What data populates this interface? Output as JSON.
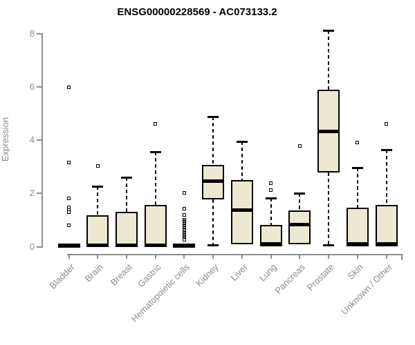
{
  "chart_data": {
    "type": "box",
    "title": "ENSG00000228569 - AC073133.2",
    "ylabel": "Expression",
    "xlabel": "",
    "ylim": [
      0,
      8
    ],
    "yticks": [
      0,
      2,
      4,
      6,
      8
    ],
    "grid": false,
    "legend": false,
    "categories": [
      "Bladder",
      "Brain",
      "Breast",
      "Gastric",
      "Hematopoietic cells",
      "Kidney",
      "Liver",
      "Lung",
      "Pancreas",
      "Prostate",
      "Skin",
      "Unknown / Other"
    ],
    "series": [
      {
        "name": "Bladder",
        "low": 0,
        "q1": 0,
        "median": 0.03,
        "q3": 0.06,
        "high": 0.06,
        "outliers": [
          5.95,
          3.15,
          1.78,
          1.45,
          1.36,
          1.27,
          0.78
        ]
      },
      {
        "name": "Brain",
        "low": 0,
        "q1": 0,
        "median": 0.03,
        "q3": 1.15,
        "high": 2.25,
        "outliers": [
          3.0
        ]
      },
      {
        "name": "Breast",
        "low": 0,
        "q1": 0,
        "median": 0.03,
        "q3": 1.28,
        "high": 2.57,
        "outliers": []
      },
      {
        "name": "Gastric",
        "low": 0,
        "q1": 0,
        "median": 0.03,
        "q3": 1.55,
        "high": 3.55,
        "outliers": [
          4.6
        ]
      },
      {
        "name": "Hematopoietic cells",
        "low": 0,
        "q1": 0,
        "median": 0.03,
        "q3": 0.06,
        "high": 0.06,
        "outliers": [
          2.0,
          1.4,
          1.17,
          0.99,
          0.95,
          0.91,
          0.87,
          0.83,
          0.79,
          0.75,
          0.71,
          0.67,
          0.63,
          0.59,
          0.55,
          0.51,
          0.47,
          0.43,
          0.39,
          0.35,
          0.31,
          0.27,
          0.23
        ]
      },
      {
        "name": "Kidney",
        "low": 0.05,
        "q1": 1.75,
        "median": 2.43,
        "q3": 3.05,
        "high": 4.85,
        "outliers": []
      },
      {
        "name": "Liver",
        "low": 0,
        "q1": 0.08,
        "median": 1.36,
        "q3": 2.48,
        "high": 3.92,
        "outliers": []
      },
      {
        "name": "Lung",
        "low": 0,
        "q1": 0,
        "median": 0.08,
        "q3": 0.8,
        "high": 1.8,
        "outliers": [
          2.35,
          2.1
        ]
      },
      {
        "name": "Pancreas",
        "low": 0.05,
        "q1": 0.06,
        "median": 0.8,
        "q3": 1.33,
        "high": 1.98,
        "outliers": [
          3.75
        ]
      },
      {
        "name": "Prostate",
        "low": 0.05,
        "q1": 2.75,
        "median": 4.3,
        "q3": 5.88,
        "high": 8.1,
        "outliers": []
      },
      {
        "name": "Skin",
        "low": 0,
        "q1": 0,
        "median": 0.08,
        "q3": 1.45,
        "high": 2.95,
        "outliers": [
          3.9
        ]
      },
      {
        "name": "Unknown / Other",
        "low": 0,
        "q1": 0,
        "median": 0.08,
        "q3": 1.55,
        "high": 3.62,
        "outliers": [
          4.6
        ]
      }
    ],
    "colors": {
      "box_fill": "#ece8d1",
      "box_border": "#000000",
      "median": "#000000",
      "axis": "#8c8c8c",
      "title": "#000000",
      "background": "#ffffff"
    }
  }
}
